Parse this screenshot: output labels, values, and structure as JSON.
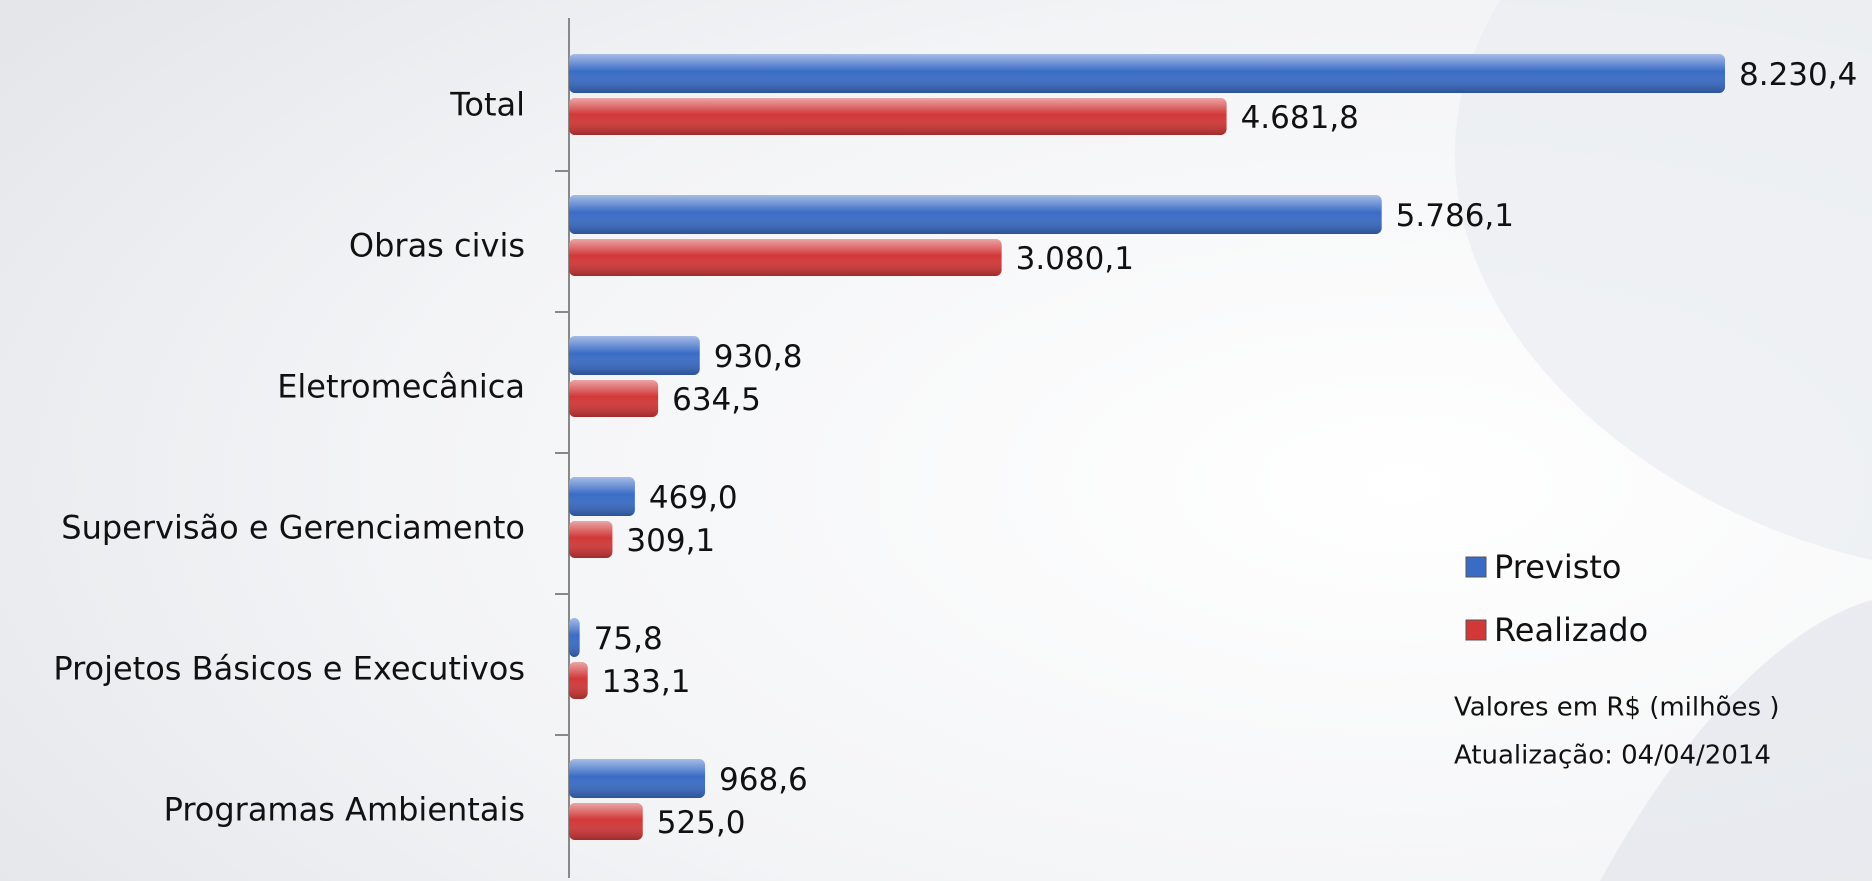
{
  "chart_data": {
    "type": "hbar",
    "categories": [
      "Total",
      "Obras civis",
      "Eletromecânica",
      "Supervisão e Gerenciamento",
      "Projetos Básicos e Executivos",
      "Programas Ambientais"
    ],
    "series": [
      {
        "name": "Previsto",
        "color": "#3a6cc6",
        "values": [
          8230.4,
          5786.1,
          930.8,
          469.0,
          75.8,
          968.6
        ],
        "value_labels": [
          "8.230,4",
          "5.786,1",
          "930,8",
          "469,0",
          "75,8",
          "968,6"
        ]
      },
      {
        "name": "Realizado",
        "color": "#d23838",
        "values": [
          4681.8,
          3080.1,
          634.5,
          309.1,
          133.1,
          525.0
        ],
        "value_labels": [
          "4.681,8",
          "3.080,1",
          "634,5",
          "309,1",
          "133,1",
          "525,0"
        ]
      }
    ],
    "annotations": [
      "Valores em R$ (milhões )",
      "Atualização: 04/04/2014"
    ],
    "legend": "right"
  }
}
